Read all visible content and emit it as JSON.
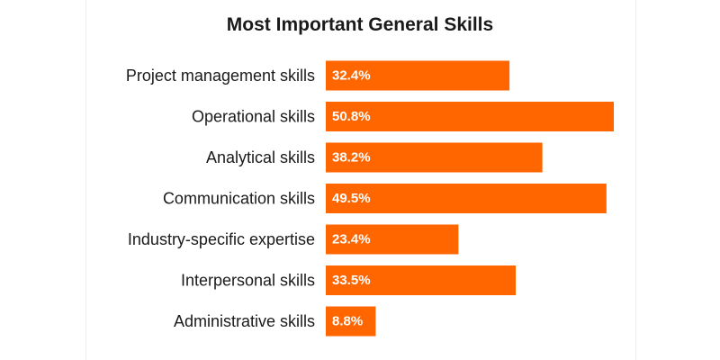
{
  "chart_data": {
    "type": "bar",
    "orientation": "horizontal",
    "title": "Most Important General Skills",
    "xlabel": "",
    "ylabel": "",
    "categories": [
      "Project management skills",
      "Operational skills",
      "Analytical skills",
      "Communication skills",
      "Industry-specific expertise",
      "Interpersonal skills",
      "Administrative skills"
    ],
    "values": [
      32.4,
      50.8,
      38.2,
      49.5,
      23.4,
      33.5,
      8.8
    ],
    "value_labels": [
      "32.4%",
      "50.8%",
      "38.2%",
      "49.5%",
      "23.4%",
      "33.5%",
      "8.8%"
    ],
    "unit": "%",
    "xlim": [
      0,
      50.8
    ],
    "grid": false,
    "legend": "none",
    "bar_color": "#ff6600"
  }
}
